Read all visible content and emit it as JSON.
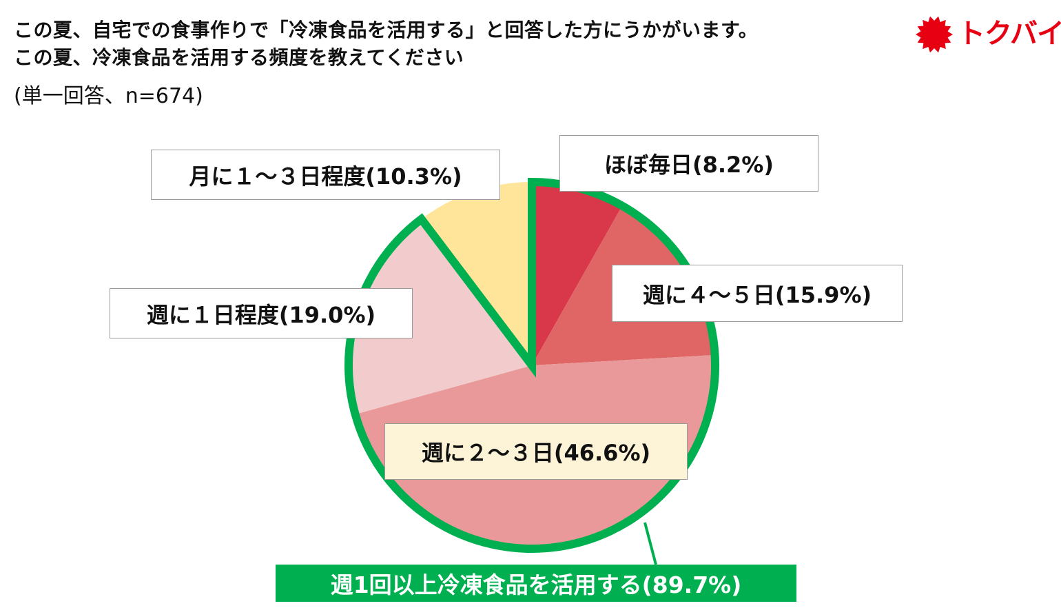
{
  "title_lines": [
    "この夏、自宅での食事作りで「冷凍食品を活用する」と回答した方にうかがいます。",
    "この夏、冷凍食品を活用する頻度を教えてください"
  ],
  "subtitle": "(単一回答、n=674)",
  "logo": {
    "text": "トクバイ",
    "color": "#e60012",
    "icon": "sun-burst-icon"
  },
  "chart_data": {
    "type": "pie",
    "start_angle_deg": 0,
    "direction": "clockwise",
    "slices": [
      {
        "label": "ほぼ毎日(8.2%)",
        "value": 8.2,
        "color": "#d9374a"
      },
      {
        "label": "週に４～５日(15.9%)",
        "value": 15.9,
        "color": "#e06666"
      },
      {
        "label": "週に２～３日(46.6%)",
        "value": 46.6,
        "color": "#e99999"
      },
      {
        "label": "週に１日程度(19.0%)",
        "value": 19.0,
        "color": "#f2cccc"
      },
      {
        "label": "月に１～３日程度(10.3%)",
        "value": 10.3,
        "color": "#ffe599"
      }
    ],
    "highlight": {
      "label": "週1回以上冷凍食品を活用する(89.7%)",
      "value": 89.7,
      "color": "#00b050"
    }
  }
}
